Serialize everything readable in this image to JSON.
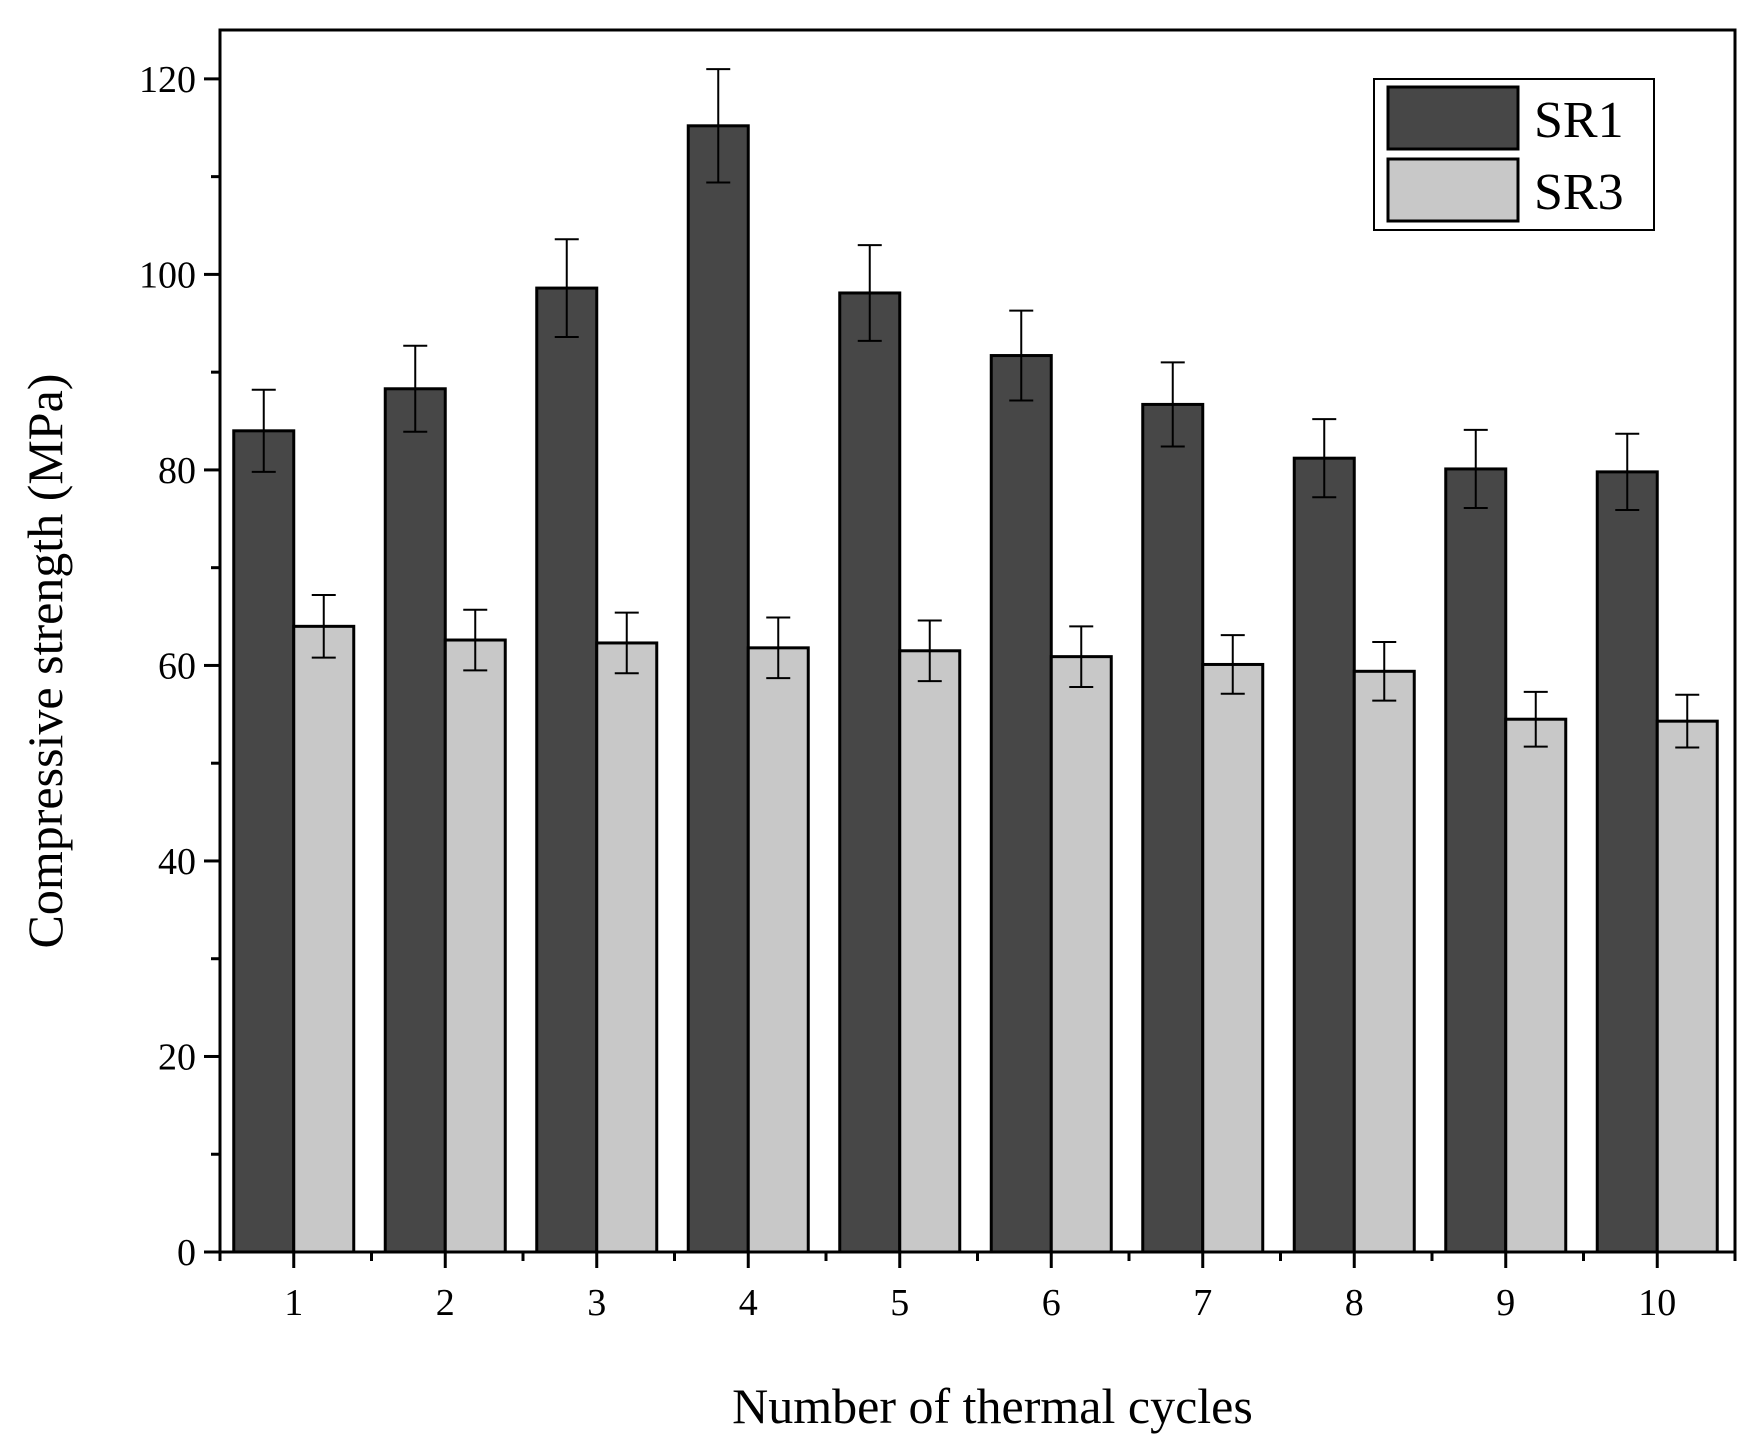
{
  "chart_data": {
    "type": "bar",
    "title": "",
    "xlabel": "Number of thermal cycles",
    "ylabel": "Compressive strength (MPa)",
    "categories": [
      "1",
      "2",
      "3",
      "4",
      "5",
      "6",
      "7",
      "8",
      "9",
      "10"
    ],
    "ylim": [
      0,
      125
    ],
    "yticks": [
      0,
      20,
      40,
      60,
      80,
      100,
      120
    ],
    "y_minor_step": 10,
    "legend_position": "top-right",
    "series": [
      {
        "name": "SR1",
        "color": "#474747",
        "values": [
          84.0,
          88.3,
          98.6,
          115.2,
          98.1,
          91.7,
          86.7,
          81.2,
          80.1,
          79.8
        ],
        "errors": [
          4.2,
          4.4,
          5.0,
          5.8,
          4.9,
          4.6,
          4.3,
          4.0,
          4.0,
          3.9
        ]
      },
      {
        "name": "SR3",
        "color": "#c8c8c8",
        "values": [
          64.0,
          62.6,
          62.3,
          61.8,
          61.5,
          60.9,
          60.1,
          59.4,
          54.5,
          54.3
        ],
        "errors": [
          3.2,
          3.1,
          3.1,
          3.1,
          3.1,
          3.1,
          3.0,
          3.0,
          2.8,
          2.7
        ]
      }
    ]
  }
}
